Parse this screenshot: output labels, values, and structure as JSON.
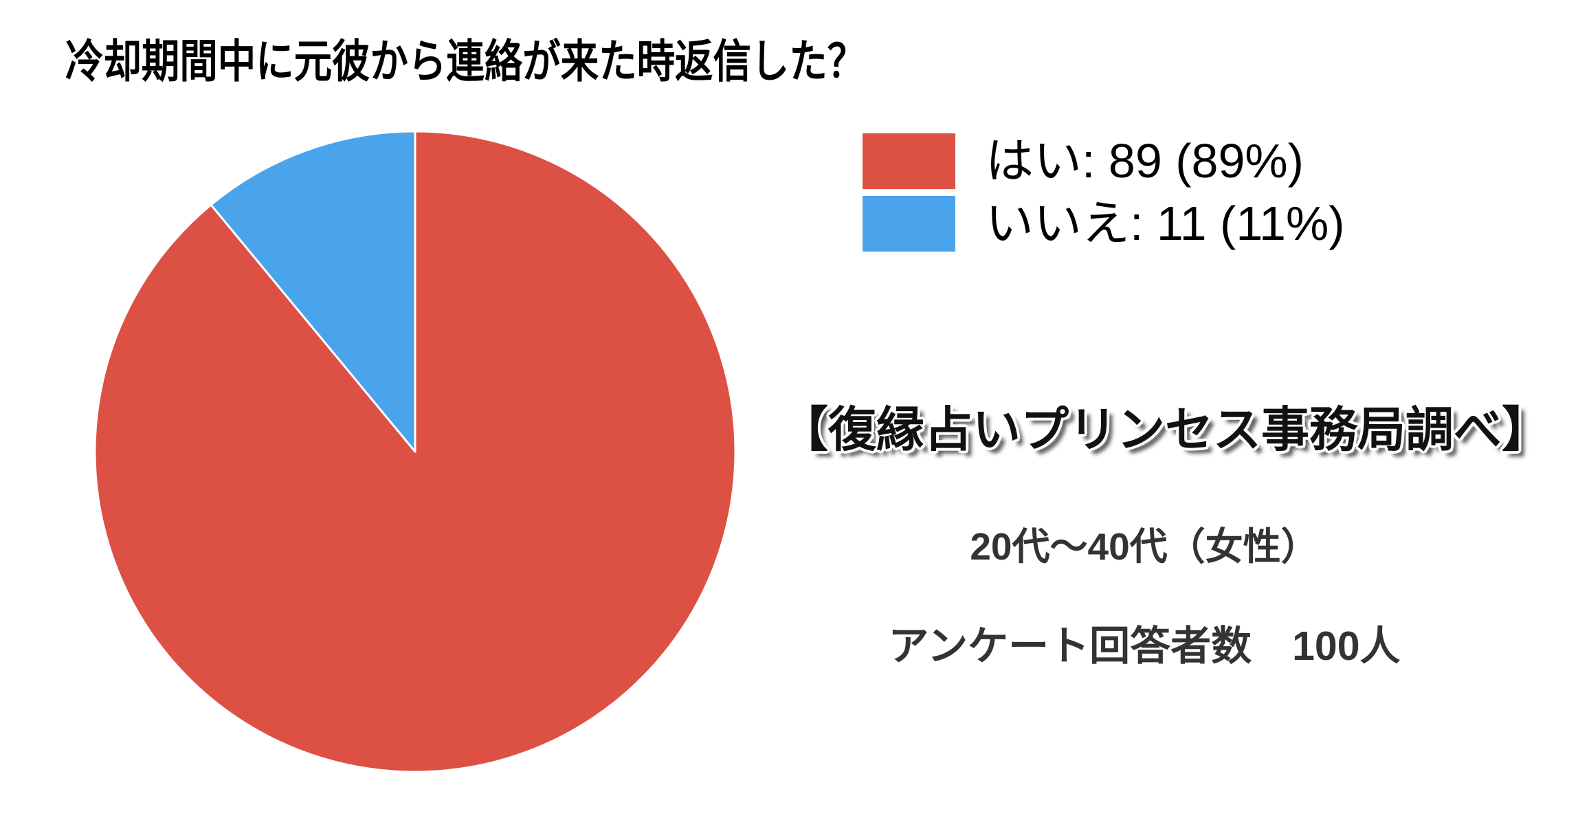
{
  "title": "冷却期間中に元彼から連絡が来た時返信した？",
  "chart_data": {
    "type": "pie",
    "title": "冷却期間中に元彼から連絡が来た時返信した？",
    "labels": [
      "はい",
      "いいえ"
    ],
    "values": [
      89,
      11
    ],
    "percents": [
      "89%",
      "11%"
    ],
    "colors": [
      "#dd5145",
      "#4aa4ec"
    ],
    "legend": [
      "はい: 89 (89%)",
      "いいえ: 11 (11%)"
    ],
    "legend_position": "top-right",
    "start_angle_deg": 0,
    "direction": "clockwise",
    "slice_border_color": "#ffffff",
    "total": 100
  },
  "annotations": {
    "source": "【復縁占いプリンセス事務局調べ】",
    "demographic": "20代〜40代（女性）",
    "respondents": "アンケート回答者数　100人"
  }
}
